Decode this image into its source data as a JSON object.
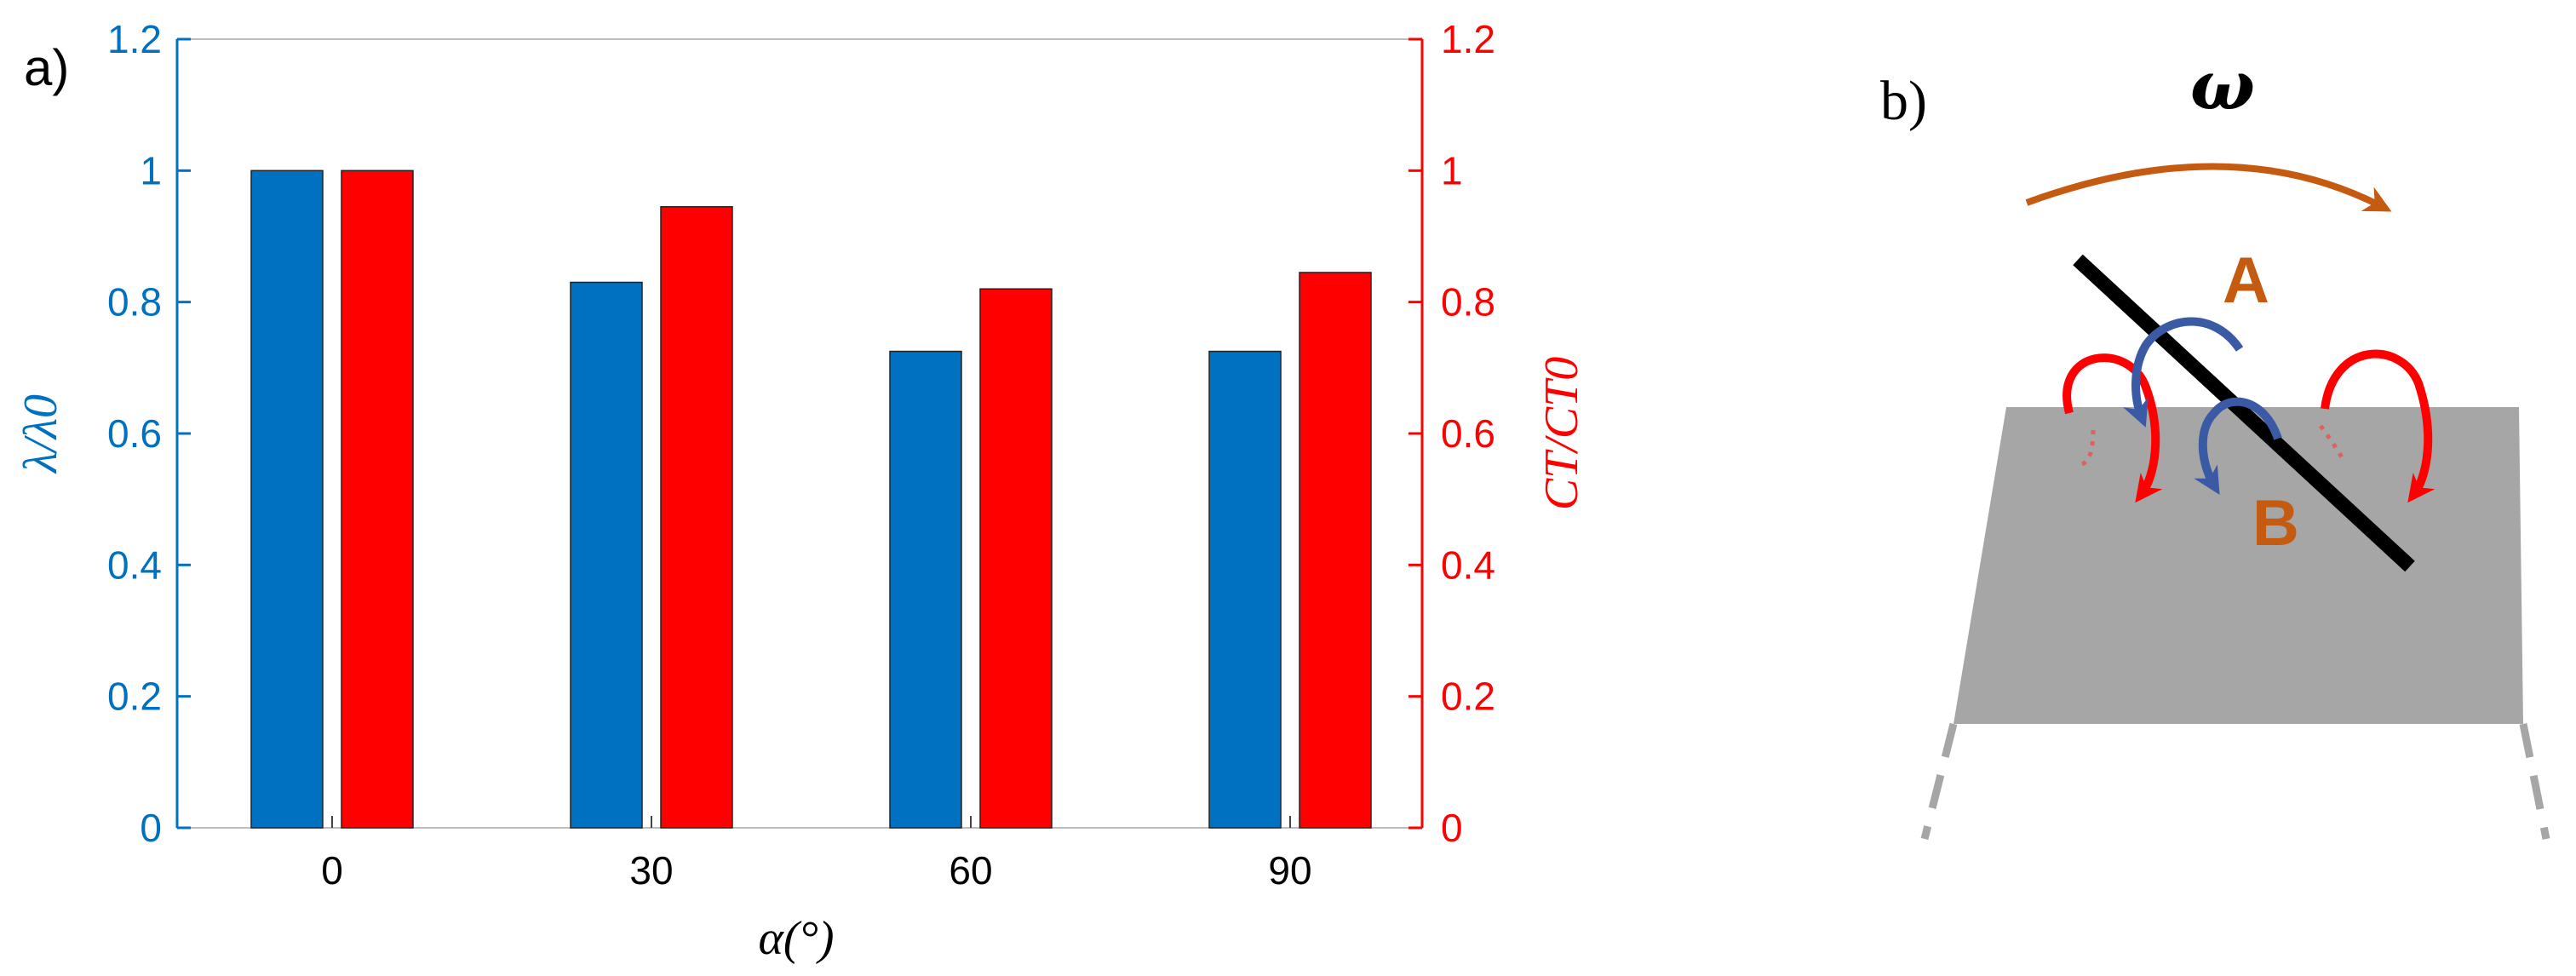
{
  "panel_a_label": "a)",
  "panel_b_label": "b)",
  "colors": {
    "blue": "#0070c0",
    "red": "#ff0000",
    "orange": "#c55a11",
    "navy": "#3a5aa6",
    "gray": "#a6a6a6",
    "black": "#000000"
  },
  "chart_data": {
    "type": "bar",
    "categories": [
      "0",
      "30",
      "60",
      "90"
    ],
    "series": [
      {
        "axis": "left",
        "color": "#0070c0",
        "values": [
          1.0,
          0.83,
          0.725,
          0.725
        ]
      },
      {
        "axis": "right",
        "color": "#ff0000",
        "values": [
          1.0,
          0.945,
          0.82,
          0.845
        ]
      }
    ],
    "xlabel": "α(°)",
    "ylabel_left": "λ/λ0",
    "ylabel_right": "CT/CT0",
    "ylim": [
      0,
      1.2
    ],
    "y_ticks": [
      "0",
      "0.2",
      "0.4",
      "0.6",
      "0.8",
      "1",
      "1.2"
    ],
    "grid": false
  },
  "diagram": {
    "omega_label": "ω",
    "label_a": "A",
    "label_b": "B"
  }
}
